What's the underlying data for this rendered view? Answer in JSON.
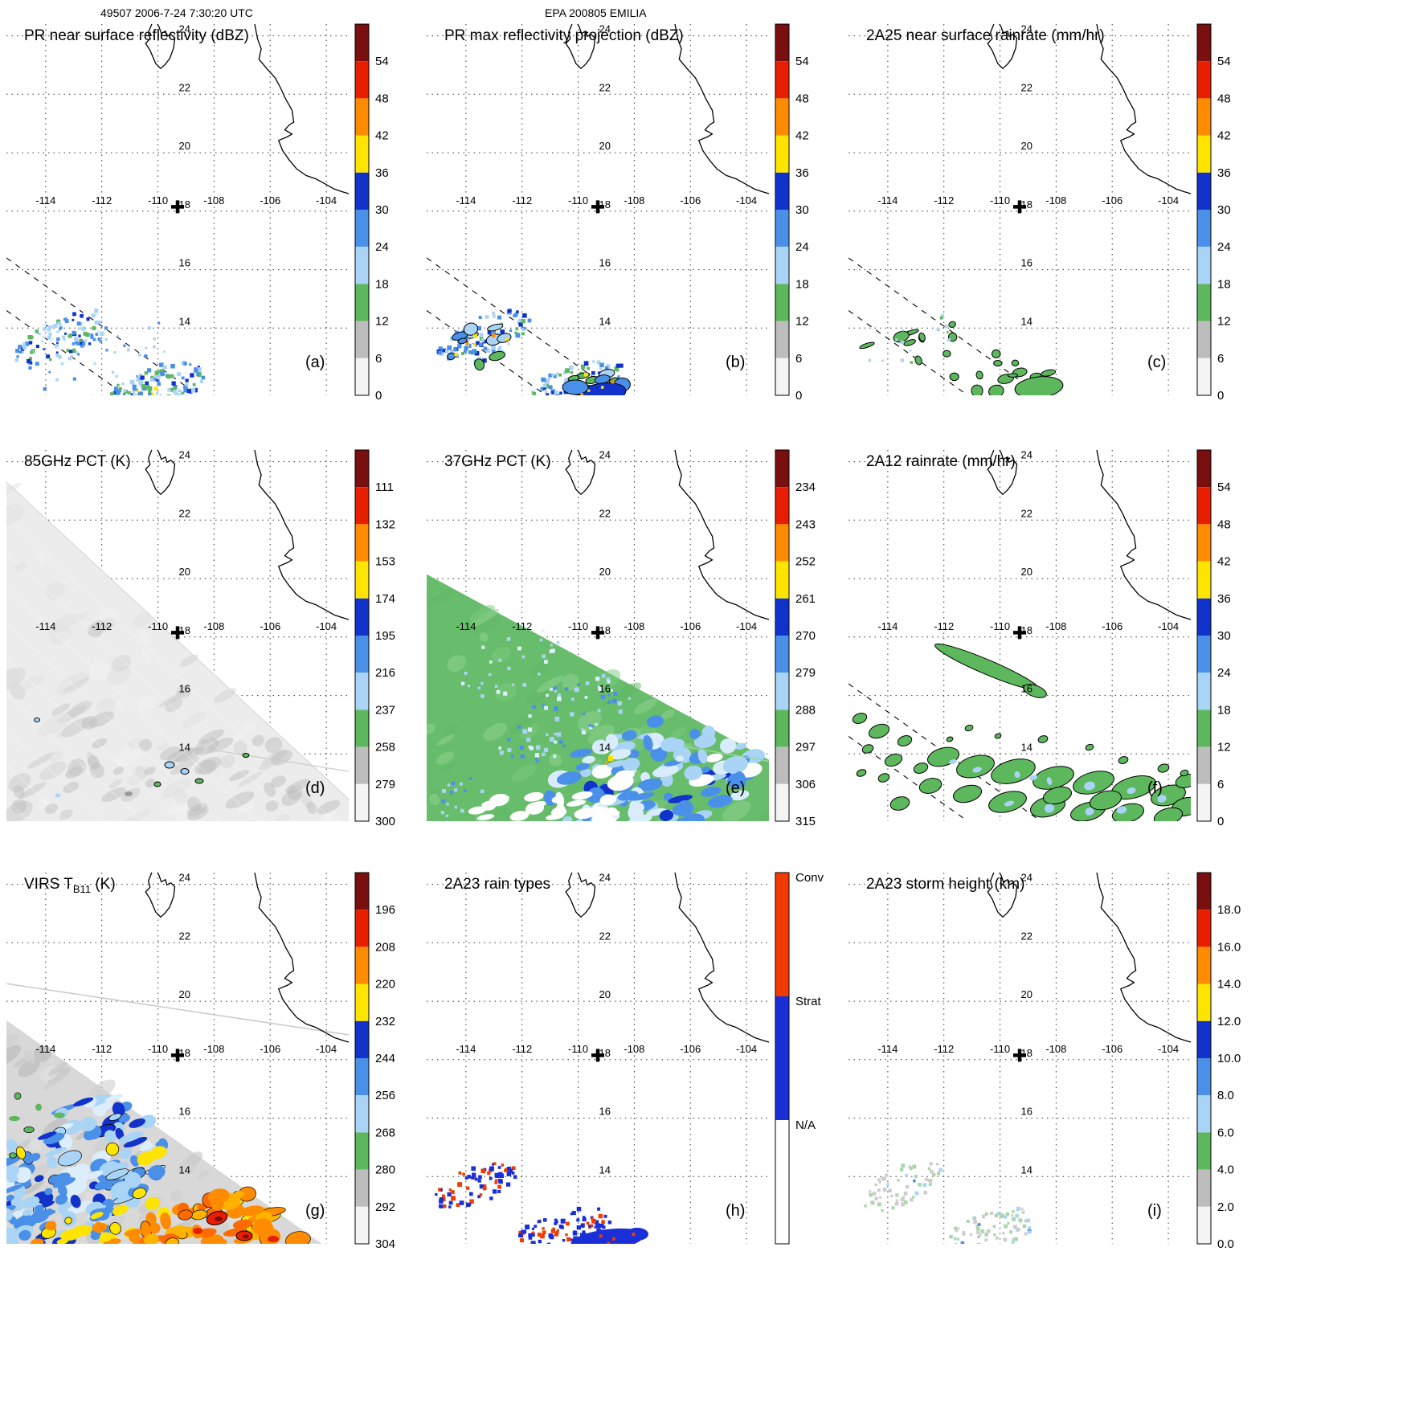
{
  "header": {
    "left": "49507 2006-7-24 7:30:20 UTC",
    "center": "EPA 200805 EMILIA"
  },
  "chart_data": {
    "type": "map",
    "figure": "3x3 multi-panel TRMM satellite overpass of hurricane EMILIA region, orbit 49507, 2006-7-24 7:30:20 UTC",
    "palette": [
      "#f4f4f4",
      "#bdbdbd",
      "#5db75d",
      "#aad4f5",
      "#4a90e8",
      "#1133cc",
      "#ffe400",
      "#ff8c00",
      "#e81e00",
      "#7a0f10"
    ],
    "geo": {
      "extent": {
        "lon": [
          -115.4,
          -103.2
        ],
        "lat": [
          11.7,
          24.4
        ]
      },
      "grid_lons": [
        -114,
        -112,
        -110,
        -108,
        -106,
        -104
      ],
      "grid_lats": [
        14,
        16,
        18,
        20,
        22,
        24
      ],
      "lon_labels": [
        "-114",
        "-112",
        "-110",
        "-108",
        "-106",
        "-104"
      ],
      "lat_labels": [
        "14",
        "16",
        "18",
        "20",
        "22",
        "24"
      ],
      "marker": {
        "lon": -109.3,
        "lat": 18.15
      },
      "pr_swath_edges": [
        [
          [
            -115.4,
            16.4
          ],
          [
            -108.55,
            11.7
          ]
        ],
        [
          [
            -115.4,
            14.6
          ],
          [
            -111.15,
            11.7
          ]
        ]
      ],
      "coast_baja": [
        [
          -110.22,
          24.4
        ],
        [
          -110.34,
          24.12
        ],
        [
          -110.28,
          23.9
        ],
        [
          -110.44,
          23.74
        ],
        [
          -110.28,
          23.5
        ],
        [
          -110.08,
          23.05
        ],
        [
          -109.9,
          22.88
        ],
        [
          -109.74,
          23.02
        ],
        [
          -109.58,
          23.22
        ],
        [
          -109.44,
          23.58
        ],
        [
          -109.4,
          23.92
        ],
        [
          -109.54,
          24.05
        ],
        [
          -109.68,
          23.98
        ],
        [
          -109.73,
          24.16
        ],
        [
          -109.88,
          24.08
        ],
        [
          -109.96,
          24.3
        ],
        [
          -110.02,
          24.4
        ]
      ],
      "coast_mainland": [
        [
          -106.55,
          24.4
        ],
        [
          -106.45,
          23.9
        ],
        [
          -106.32,
          23.55
        ],
        [
          -106.4,
          23.2
        ],
        [
          -106.12,
          22.88
        ],
        [
          -105.82,
          22.56
        ],
        [
          -105.62,
          22.2
        ],
        [
          -105.46,
          21.86
        ],
        [
          -105.22,
          21.45
        ],
        [
          -105.16,
          21.05
        ],
        [
          -105.32,
          20.95
        ],
        [
          -105.48,
          20.78
        ],
        [
          -105.22,
          20.64
        ],
        [
          -105.38,
          20.55
        ],
        [
          -105.7,
          20.42
        ],
        [
          -105.56,
          20.08
        ],
        [
          -105.32,
          19.75
        ],
        [
          -105.06,
          19.45
        ],
        [
          -104.72,
          19.22
        ],
        [
          -104.36,
          19.1
        ],
        [
          -104.06,
          18.94
        ],
        [
          -103.72,
          18.76
        ],
        [
          -103.42,
          18.66
        ],
        [
          -103.2,
          18.6
        ]
      ]
    },
    "panels": [
      {
        "letter": "(a)",
        "title_pre": "PR near surface reflectivity (dBZ)",
        "kind": "pr_z",
        "units": "dBZ",
        "swath_lines": true,
        "cbar_ticks": [
          "54",
          "48",
          "42",
          "36",
          "30",
          "24",
          "18",
          "12",
          "6",
          "0"
        ],
        "description": "Scattered weak echoes (mostly 18-36 dBZ, blue/green speckles) in narrow PR swath southwest of Mexican coast near 12-16N, 104-115W"
      },
      {
        "letter": "(b)",
        "title_pre": "PR max reflectivity projection (dBZ)",
        "kind": "pr_zmax",
        "units": "dBZ",
        "swath_lines": true,
        "cbar_ticks": [
          "54",
          "48",
          "42",
          "36",
          "30",
          "24",
          "18",
          "12",
          "6",
          "0"
        ],
        "description": "Same cells as (a) but stronger: black-outlined blue/green blobs with a few yellow-orange cores up to ~45 dBZ"
      },
      {
        "letter": "(c)",
        "title_pre": "2A25 near surface rainrate (mm/hr)",
        "kind": "pr_rain",
        "units": "mm/hr",
        "swath_lines": true,
        "cbar_ticks": [
          "54",
          "48",
          "42",
          "36",
          "30",
          "24",
          "18",
          "12",
          "6",
          "0"
        ],
        "description": "Light rain (mostly <18 mm/hr, green outlined patches) along the PR swath"
      },
      {
        "letter": "(d)",
        "title_pre": "85GHz PCT (K)",
        "kind": "tmi85",
        "units": "K",
        "cbar_ticks": [
          "111",
          "132",
          "153",
          "174",
          "195",
          "216",
          "237",
          "258",
          "279",
          "300"
        ],
        "description": "Wide TMI swath of warm PCT (~270-300 K, gray shades) with a few small depressed-PCT (blue/green outlined) convective spots near 14N 109W"
      },
      {
        "letter": "(e)",
        "title_pre": "37GHz PCT (K)",
        "kind": "tmi37",
        "units": "K",
        "cbar_ticks": [
          "234",
          "243",
          "252",
          "261",
          "270",
          "279",
          "288",
          "297",
          "306",
          "315"
        ],
        "description": "TMI swath mostly ~288-297 K (green) with emission signal 270-285 K (blue/light-blue) over the rain area in the lower middle of the swath"
      },
      {
        "letter": "(f)",
        "title_pre": "2A12 rainrate (mm/hr)",
        "kind": "tmi_rain",
        "units": "mm/hr",
        "swath_lines": true,
        "cbar_ticks": [
          "54",
          "48",
          "42",
          "36",
          "30",
          "24",
          "18",
          "12",
          "6",
          "0"
        ],
        "description": "Broad light rain field (<12 mm/hr, green with light-blue spots, black outlined) across the lower swath plus a narrow streak near 17N"
      },
      {
        "letter": "(g)",
        "title_pre": "VIRS T",
        "title_sub": "B11",
        "title_post": " (K)",
        "kind": "virs",
        "units": "K",
        "cbar_ticks": [
          "196",
          "208",
          "220",
          "232",
          "244",
          "256",
          "268",
          "280",
          "292",
          "304"
        ],
        "description": "VIRS 10.8um brightness temperature: warm gray background with extensive cold cloud (blue 244-256 K) northwest and very cold tops (orange/red 196-220 K) southeast"
      },
      {
        "letter": "(h)",
        "title_pre": "2A23 rain types",
        "kind": "raintype",
        "units": "",
        "cbar_type": "categorical",
        "cbar_categories": [
          {
            "label": "Conv",
            "color": "#f23b00"
          },
          {
            "label": "Strat",
            "color": "#1a2fd8"
          },
          {
            "label": "N/A",
            "color": "#ffffff"
          }
        ],
        "description": "Mostly stratiform (blue) pixels with embedded convective (red-orange) cells in the PR swath; solid stratiform patch at swath bottom"
      },
      {
        "letter": "(i)",
        "title_pre": "2A23 storm height (km)",
        "kind": "stormh",
        "units": "km",
        "cbar_ticks": [
          "18.0",
          "16.0",
          "14.0",
          "12.0",
          "10.0",
          "8.0",
          "6.0",
          "4.0",
          "2.0",
          "0.0"
        ],
        "description": "Shallow storms: mostly 2-6 km (gray/pale-green speckles) with isolated 6-10 km (blue) pixels in the PR swath"
      }
    ]
  }
}
